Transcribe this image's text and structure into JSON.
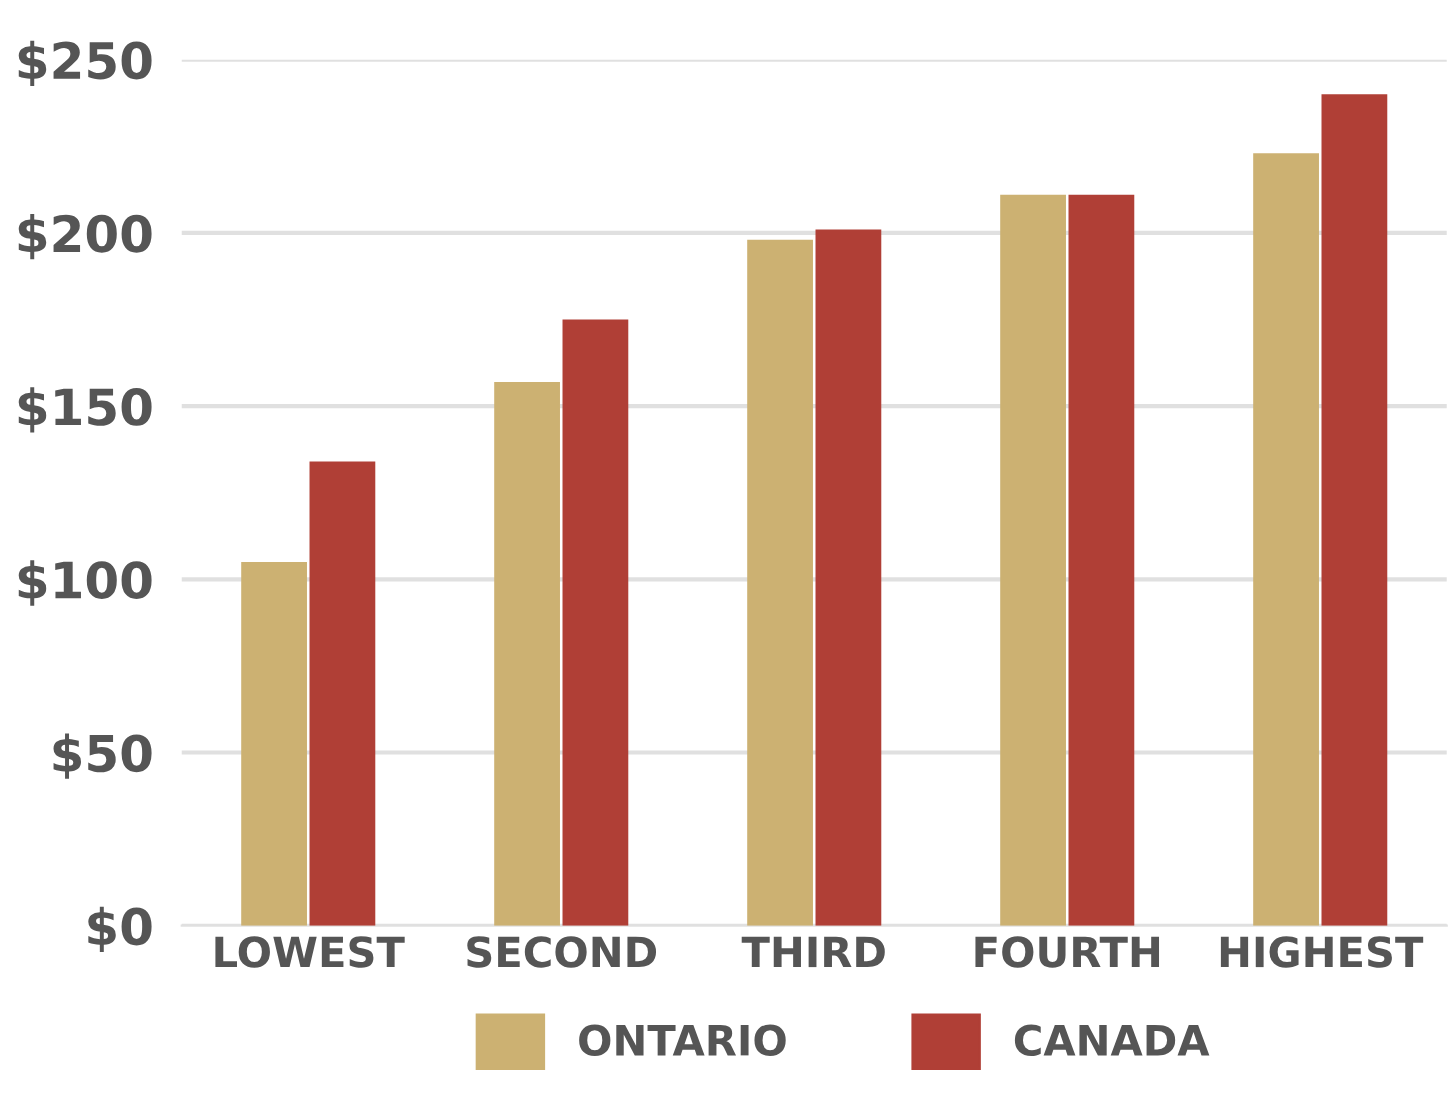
{
  "chart_data": {
    "type": "bar",
    "categories": [
      "LOWEST",
      "SECOND",
      "THIRD",
      "FOURTH",
      "HIGHEST"
    ],
    "series": [
      {
        "name": "ONTARIO",
        "color": "#ccb172",
        "values": [
          105,
          157,
          198,
          211,
          223
        ]
      },
      {
        "name": "CANADA",
        "color": "#b03f36",
        "values": [
          134,
          175,
          201,
          211,
          240
        ]
      }
    ],
    "ylim": [
      0,
      250
    ],
    "yticks": [
      {
        "value": 0,
        "label": "$0"
      },
      {
        "value": 50,
        "label": "$50"
      },
      {
        "value": 100,
        "label": "$100"
      },
      {
        "value": 150,
        "label": "$150"
      },
      {
        "value": 200,
        "label": "$200"
      },
      {
        "value": 250,
        "label": "$250"
      }
    ],
    "grid": "y",
    "legend": "bottom"
  }
}
